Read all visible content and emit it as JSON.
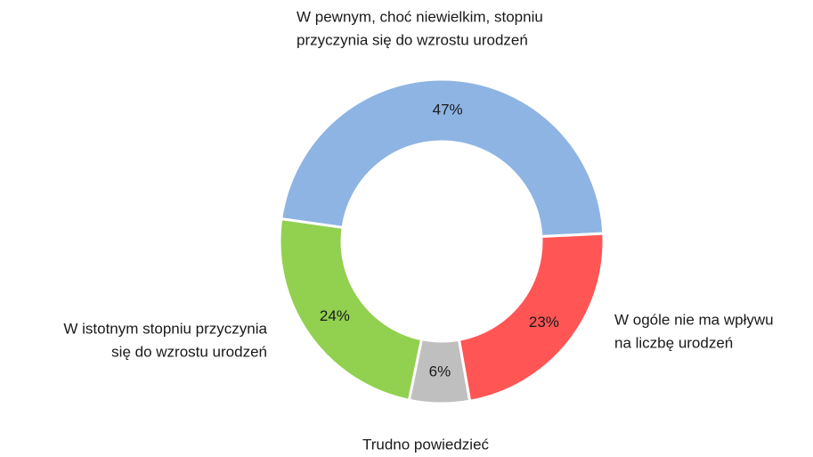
{
  "chart_data": {
    "type": "donut",
    "categories": [
      [
        "W pewnym, choć niewielkim, stopniu",
        "przyczynia się do wzrostu urodzeń"
      ],
      [
        "W ogóle nie ma wpływu",
        "na liczbę urodzeń"
      ],
      [
        "Trudno powiedzieć"
      ],
      [
        "W istotnym stopniu przyczynia",
        "się do wzrostu urodzeń"
      ]
    ],
    "values": [
      47,
      23,
      6,
      24
    ],
    "value_labels": [
      "47%",
      "23%",
      "6%",
      "24%"
    ],
    "colors": [
      "#8eb4e3",
      "#ff5555",
      "#bfbfbf",
      "#92d050"
    ]
  }
}
